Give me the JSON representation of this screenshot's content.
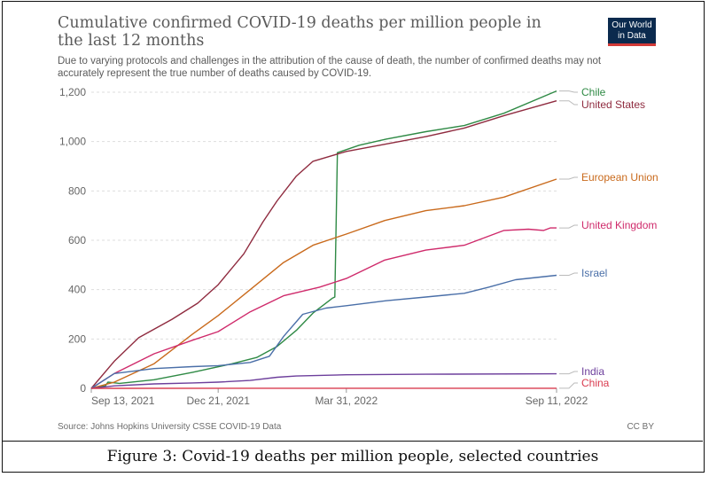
{
  "figure": {
    "title": "Cumulative confirmed COVID-19 deaths per million people in the last 12 months",
    "subtitle": "Due to varying protocols and challenges in the attribution of the cause of death, the number of confirmed deaths may not accurately represent the true number of deaths caused by COVID-19.",
    "logo_line1": "Our World",
    "logo_line2": "in Data",
    "source": "Source: Johns Hopkins University CSSE COVID-19 Data",
    "license": "CC BY",
    "caption": "Figure 3: Covid-19 deaths per million people, selected countries"
  },
  "colors": {
    "Chile": "#2f8a45",
    "United States": "#8f2b3f",
    "European Union": "#c96a1c",
    "United Kingdom": "#cf2a6b",
    "Israel": "#4a6fa8",
    "India": "#6d3f9c",
    "China": "#d93b4f",
    "grid": "#dddddd",
    "axis_text": "#666666",
    "logo_bg": "#0b2a4e",
    "logo_bar": "#d23a37"
  },
  "chart_data": {
    "type": "line",
    "x_start": "2021-09-13",
    "x_end": "2022-09-11",
    "x_ticks": [
      {
        "label": "Sep 13, 2021",
        "date": "2021-09-13"
      },
      {
        "label": "Dec 21, 2021",
        "date": "2021-12-21"
      },
      {
        "label": "Mar 31, 2022",
        "date": "2022-03-31"
      },
      {
        "label": "Sep 11, 2022",
        "date": "2022-09-11"
      }
    ],
    "y_ticks": [
      0,
      200,
      400,
      600,
      800,
      1000,
      1200
    ],
    "y_tick_labels": [
      "0",
      "200",
      "400",
      "600",
      "800",
      "1,000",
      "1,200"
    ],
    "ylim": [
      0,
      1200
    ],
    "grid": true,
    "legend": "right, line-end labels",
    "series": [
      {
        "name": "Chile",
        "points": [
          [
            "2021-09-13",
            0
          ],
          [
            "2021-09-24",
            10
          ],
          [
            "2021-09-26",
            25
          ],
          [
            "2021-10-05",
            20
          ],
          [
            "2021-11-01",
            35
          ],
          [
            "2021-12-01",
            65
          ],
          [
            "2022-01-01",
            100
          ],
          [
            "2022-01-20",
            125
          ],
          [
            "2022-02-05",
            170
          ],
          [
            "2022-02-20",
            235
          ],
          [
            "2022-03-05",
            305
          ],
          [
            "2022-03-20",
            365
          ],
          [
            "2022-03-22",
            370
          ],
          [
            "2022-03-24",
            955
          ],
          [
            "2022-04-10",
            985
          ],
          [
            "2022-05-01",
            1010
          ],
          [
            "2022-06-01",
            1040
          ],
          [
            "2022-07-01",
            1065
          ],
          [
            "2022-08-01",
            1115
          ],
          [
            "2022-09-11",
            1205
          ]
        ]
      },
      {
        "name": "United States",
        "points": [
          [
            "2021-09-13",
            0
          ],
          [
            "2021-10-01",
            110
          ],
          [
            "2021-10-20",
            205
          ],
          [
            "2021-11-15",
            280
          ],
          [
            "2021-12-05",
            345
          ],
          [
            "2021-12-21",
            420
          ],
          [
            "2022-01-10",
            545
          ],
          [
            "2022-01-25",
            675
          ],
          [
            "2022-02-05",
            760
          ],
          [
            "2022-02-20",
            860
          ],
          [
            "2022-03-05",
            920
          ],
          [
            "2022-03-31",
            960
          ],
          [
            "2022-05-01",
            990
          ],
          [
            "2022-06-01",
            1020
          ],
          [
            "2022-07-01",
            1055
          ],
          [
            "2022-08-01",
            1105
          ],
          [
            "2022-09-11",
            1165
          ]
        ]
      },
      {
        "name": "European Union",
        "points": [
          [
            "2021-09-13",
            0
          ],
          [
            "2021-10-01",
            25
          ],
          [
            "2021-11-01",
            100
          ],
          [
            "2021-12-01",
            220
          ],
          [
            "2021-12-21",
            295
          ],
          [
            "2022-01-15",
            400
          ],
          [
            "2022-02-10",
            510
          ],
          [
            "2022-03-05",
            580
          ],
          [
            "2022-03-31",
            625
          ],
          [
            "2022-04-30",
            680
          ],
          [
            "2022-06-01",
            720
          ],
          [
            "2022-07-01",
            740
          ],
          [
            "2022-08-01",
            775
          ],
          [
            "2022-09-11",
            848
          ]
        ]
      },
      {
        "name": "United Kingdom",
        "points": [
          [
            "2021-09-13",
            0
          ],
          [
            "2021-10-01",
            60
          ],
          [
            "2021-11-01",
            140
          ],
          [
            "2021-12-01",
            195
          ],
          [
            "2021-12-21",
            230
          ],
          [
            "2022-01-15",
            310
          ],
          [
            "2022-02-10",
            375
          ],
          [
            "2022-03-10",
            410
          ],
          [
            "2022-03-31",
            445
          ],
          [
            "2022-04-30",
            520
          ],
          [
            "2022-06-01",
            560
          ],
          [
            "2022-07-01",
            580
          ],
          [
            "2022-08-01",
            640
          ],
          [
            "2022-08-20",
            645
          ],
          [
            "2022-09-01",
            640
          ],
          [
            "2022-09-06",
            650
          ],
          [
            "2022-09-11",
            650
          ]
        ]
      },
      {
        "name": "Israel",
        "points": [
          [
            "2021-09-13",
            0
          ],
          [
            "2021-10-01",
            60
          ],
          [
            "2021-11-01",
            80
          ],
          [
            "2021-12-01",
            88
          ],
          [
            "2021-12-21",
            92
          ],
          [
            "2022-01-15",
            105
          ],
          [
            "2022-01-30",
            130
          ],
          [
            "2022-02-10",
            210
          ],
          [
            "2022-02-25",
            300
          ],
          [
            "2022-03-15",
            325
          ],
          [
            "2022-03-31",
            335
          ],
          [
            "2022-05-01",
            355
          ],
          [
            "2022-06-01",
            370
          ],
          [
            "2022-07-01",
            385
          ],
          [
            "2022-07-20",
            410
          ],
          [
            "2022-08-10",
            440
          ],
          [
            "2022-09-11",
            458
          ]
        ]
      },
      {
        "name": "India",
        "points": [
          [
            "2021-09-13",
            0
          ],
          [
            "2021-10-01",
            10
          ],
          [
            "2021-11-01",
            18
          ],
          [
            "2021-12-01",
            22
          ],
          [
            "2021-12-21",
            25
          ],
          [
            "2022-01-15",
            32
          ],
          [
            "2022-02-05",
            45
          ],
          [
            "2022-02-20",
            50
          ],
          [
            "2022-03-31",
            55
          ],
          [
            "2022-06-01",
            57
          ],
          [
            "2022-09-11",
            59
          ]
        ]
      },
      {
        "name": "China",
        "points": [
          [
            "2021-09-13",
            0
          ],
          [
            "2022-09-11",
            0.2
          ]
        ]
      }
    ]
  }
}
